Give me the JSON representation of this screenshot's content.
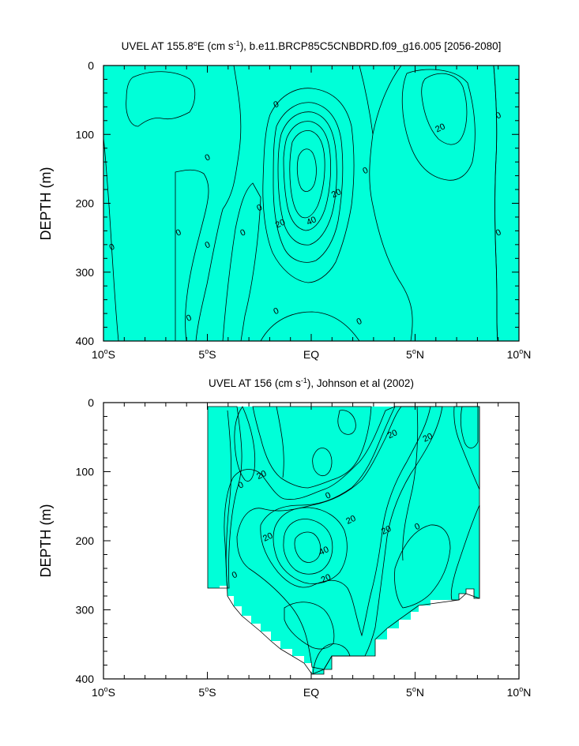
{
  "colors": {
    "cyan": "#00ffd8",
    "green": "#33ff00",
    "lime": "#a8ff00",
    "yellow": "#ffff00",
    "gold": "#ffcc33",
    "orange": "#ffa040",
    "deep_orange": "#f08a3c",
    "light_blue": "#22e8f0"
  },
  "chart_data": [
    {
      "type": "contour",
      "title_main": "UVEL AT 155.8",
      "title_deg": "o",
      "title_unit_pre": "E (cm s",
      "title_unit_exp": "-1",
      "title_rest": "), b.e11.BRCP85C5CNBDRD.f09_g16.005 [2056-2080]",
      "ylabel": "DEPTH (m)",
      "xlim": [
        -10,
        10
      ],
      "ylim": [
        400,
        0
      ],
      "x_ticks": [
        {
          "value": -10,
          "num": "10",
          "deg": "o",
          "hemi": "S"
        },
        {
          "value": -5,
          "num": "5",
          "deg": "o",
          "hemi": "S"
        },
        {
          "value": 0,
          "num": "EQ",
          "deg": "",
          "hemi": ""
        },
        {
          "value": 5,
          "num": "5",
          "deg": "o",
          "hemi": "N"
        },
        {
          "value": 10,
          "num": "10",
          "deg": "o",
          "hemi": "N"
        }
      ],
      "y_ticks": [
        {
          "value": 0,
          "label": "0"
        },
        {
          "value": 100,
          "label": "100"
        },
        {
          "value": 200,
          "label": "200"
        },
        {
          "value": 300,
          "label": "300"
        },
        {
          "value": 400,
          "label": "400"
        }
      ],
      "contour_interval": 10,
      "contour_labels": [
        {
          "x": -9.6,
          "y": 263,
          "text": "0"
        },
        {
          "x": -6.4,
          "y": 242,
          "text": "0"
        },
        {
          "x": -5.0,
          "y": 260,
          "text": "0"
        },
        {
          "x": -5.0,
          "y": 133,
          "text": "0"
        },
        {
          "x": -3.3,
          "y": 242,
          "text": "0"
        },
        {
          "x": -5.9,
          "y": 366,
          "text": "0"
        },
        {
          "x": -1.7,
          "y": 56,
          "text": "0"
        },
        {
          "x": -2.5,
          "y": 206,
          "text": "0"
        },
        {
          "x": -1.7,
          "y": 356,
          "text": "0"
        },
        {
          "x": 2.6,
          "y": 152,
          "text": "0"
        },
        {
          "x": 2.3,
          "y": 371,
          "text": "0"
        },
        {
          "x": 9.0,
          "y": 72,
          "text": "0"
        },
        {
          "x": 9.0,
          "y": 242,
          "text": "0"
        },
        {
          "x": 6.2,
          "y": 90,
          "text": "20"
        },
        {
          "x": 1.2,
          "y": 185,
          "text": "20"
        },
        {
          "x": -1.5,
          "y": 229,
          "text": "20"
        },
        {
          "x": 0.0,
          "y": 225,
          "text": "40"
        }
      ]
    },
    {
      "type": "contour",
      "title_main": "UVEL AT 156 (cm s",
      "title_unit_exp": "-1",
      "title_rest": "), Johnson et al (2002)",
      "ylabel": "DEPTH (m)",
      "xlim": [
        -10,
        10
      ],
      "ylim": [
        400,
        0
      ],
      "x_ticks": [
        {
          "value": -10,
          "num": "10",
          "deg": "o",
          "hemi": "S"
        },
        {
          "value": -5,
          "num": "5",
          "deg": "o",
          "hemi": "S"
        },
        {
          "value": 0,
          "num": "EQ",
          "deg": "",
          "hemi": ""
        },
        {
          "value": 5,
          "num": "5",
          "deg": "o",
          "hemi": "N"
        },
        {
          "value": 10,
          "num": "10",
          "deg": "o",
          "hemi": "N"
        }
      ],
      "y_ticks": [
        {
          "value": 0,
          "label": "0"
        },
        {
          "value": 100,
          "label": "100"
        },
        {
          "value": 200,
          "label": "200"
        },
        {
          "value": 300,
          "label": "300"
        },
        {
          "value": 400,
          "label": "400"
        }
      ],
      "data_extent_x": [
        -5,
        8
      ],
      "contour_interval": 10,
      "contour_labels": [
        {
          "x": 3.9,
          "y": 45,
          "text": "20"
        },
        {
          "x": 5.6,
          "y": 50,
          "text": "20"
        },
        {
          "x": -2.4,
          "y": 104,
          "text": "20"
        },
        {
          "x": -3.4,
          "y": 119,
          "text": "0"
        },
        {
          "x": 0.8,
          "y": 134,
          "text": "0"
        },
        {
          "x": 1.9,
          "y": 169,
          "text": "20"
        },
        {
          "x": 3.6,
          "y": 184,
          "text": "20"
        },
        {
          "x": 5.1,
          "y": 179,
          "text": "0"
        },
        {
          "x": -2.1,
          "y": 194,
          "text": "20"
        },
        {
          "x": 0.6,
          "y": 214,
          "text": "40"
        },
        {
          "x": 0.7,
          "y": 254,
          "text": "20"
        },
        {
          "x": -3.7,
          "y": 249,
          "text": "0"
        }
      ]
    }
  ]
}
